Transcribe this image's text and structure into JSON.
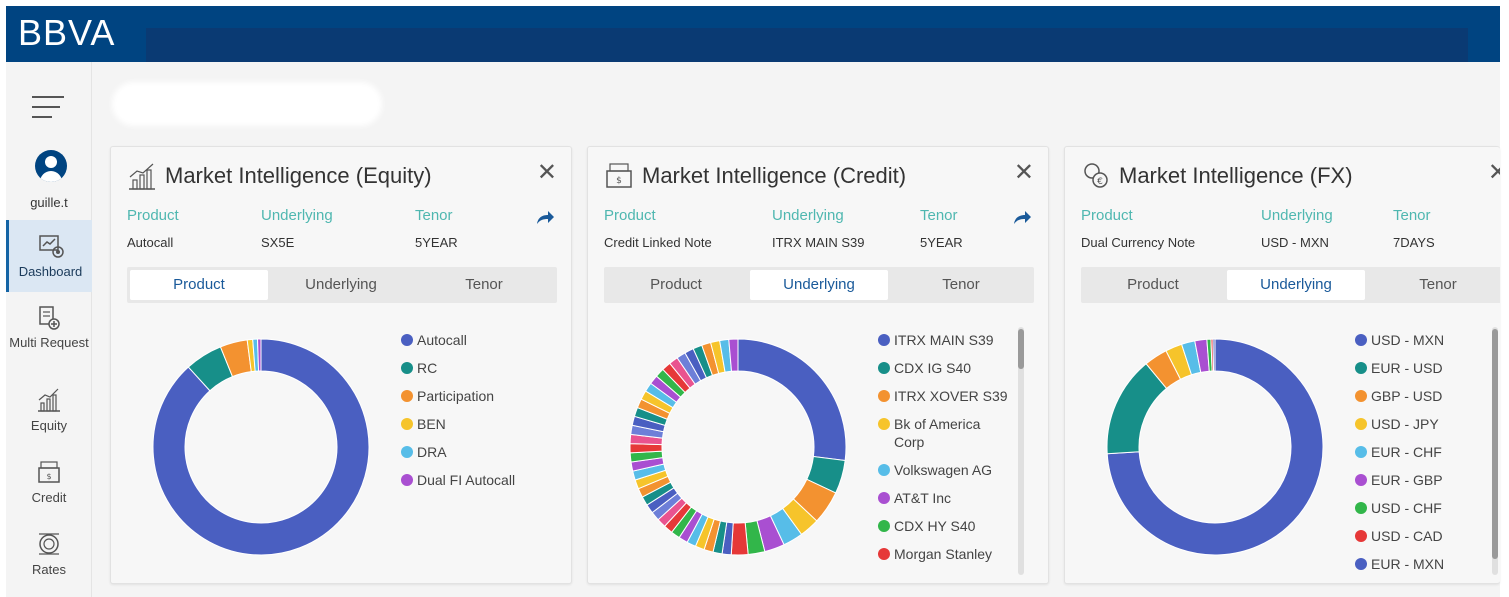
{
  "header": {
    "brand": "BBVA"
  },
  "sidebar": {
    "user": "guille.t",
    "items": [
      {
        "label": "Dashboard",
        "icon": "dashboard-icon",
        "active": true
      },
      {
        "label": "Multi Request",
        "icon": "multi-request-icon",
        "active": false
      },
      {
        "label": "Equity",
        "icon": "equity-icon",
        "active": false
      },
      {
        "label": "Credit",
        "icon": "credit-icon",
        "active": false
      },
      {
        "label": "Rates",
        "icon": "rates-icon",
        "active": false
      }
    ]
  },
  "cards": [
    {
      "title": "Market Intelligence (Equity)",
      "icon": "equity-chart-icon",
      "labels": {
        "product": "Product",
        "underlying": "Underlying",
        "tenor": "Tenor"
      },
      "values": {
        "product": "Autocall",
        "underlying": "SX5E",
        "tenor": "5YEAR"
      },
      "tabs": [
        "Product",
        "Underlying",
        "Tenor"
      ],
      "active_tab": 0
    },
    {
      "title": "Market Intelligence (Credit)",
      "icon": "credit-document-icon",
      "labels": {
        "product": "Product",
        "underlying": "Underlying",
        "tenor": "Tenor"
      },
      "values": {
        "product": "Credit Linked Note",
        "underlying": "ITRX MAIN S39",
        "tenor": "5YEAR"
      },
      "tabs": [
        "Product",
        "Underlying",
        "Tenor"
      ],
      "active_tab": 1
    },
    {
      "title": "Market Intelligence (FX)",
      "icon": "fx-coins-icon",
      "labels": {
        "product": "Product",
        "underlying": "Underlying",
        "tenor": "Tenor"
      },
      "values": {
        "product": "Dual Currency Note",
        "underlying": "USD - MXN",
        "tenor": "7DAYS"
      },
      "tabs": [
        "Product",
        "Underlying",
        "Tenor"
      ],
      "active_tab": 1
    }
  ],
  "chart_data": [
    {
      "type": "pie",
      "title": "",
      "categories": [
        "Autocall",
        "RC",
        "Participation",
        "BEN",
        "DRA",
        "Dual FI Autocall"
      ],
      "values": [
        86.5,
        5.5,
        4,
        0.8,
        0.7,
        0.5
      ],
      "colors": [
        "#4a5fc1",
        "#178f89",
        "#f39230",
        "#f6c42b",
        "#57bde8",
        "#a94fd1"
      ]
    },
    {
      "type": "pie",
      "title": "",
      "categories": [
        "ITRX MAIN S39",
        "CDX IG S40",
        "ITRX XOVER S39",
        "Bk of America Corp",
        "Volkswagen AG",
        "AT&T Inc",
        "CDX HY S40",
        "Morgan Stanley"
      ],
      "values": [
        27,
        5,
        5,
        3,
        3,
        3,
        2.5,
        2.5
      ],
      "colors": [
        "#4a5fc1",
        "#178f89",
        "#f39230",
        "#f6c42b",
        "#57bde8",
        "#a94fd1",
        "#32b64a",
        "#e63838"
      ],
      "extra_colors": [
        "#4a5fc1",
        "#178f89",
        "#f39230",
        "#f6c42b",
        "#57bde8",
        "#a94fd1",
        "#32b64a",
        "#e63838",
        "#e9538f",
        "#6d7fd8"
      ]
    },
    {
      "type": "pie",
      "title": "",
      "categories": [
        "USD - MXN",
        "EUR - USD",
        "GBP - USD",
        "USD - JPY",
        "EUR - CHF",
        "EUR - GBP",
        "USD - CHF",
        "USD - CAD",
        "EUR - MXN"
      ],
      "values": [
        74,
        15,
        3.5,
        2.5,
        2,
        1.8,
        0.6,
        0.3,
        0.3
      ],
      "colors": [
        "#4a5fc1",
        "#178f89",
        "#f39230",
        "#f6c42b",
        "#57bde8",
        "#a94fd1",
        "#32b64a",
        "#e63838",
        "#4a5fc1"
      ]
    }
  ]
}
